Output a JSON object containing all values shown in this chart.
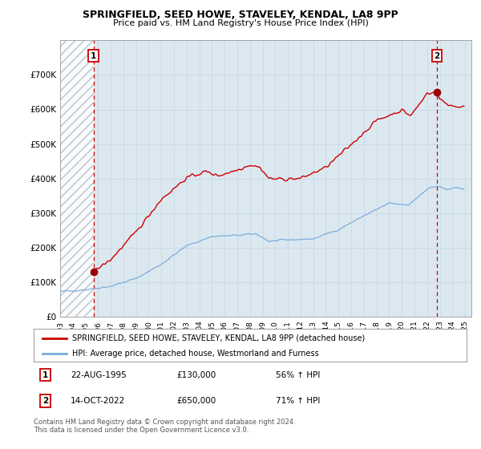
{
  "title": "SPRINGFIELD, SEED HOWE, STAVELEY, KENDAL, LA8 9PP",
  "subtitle": "Price paid vs. HM Land Registry's House Price Index (HPI)",
  "sale1_date": "22-AUG-1995",
  "sale1_price": 130000,
  "sale1_hpi": "56% ↑ HPI",
  "sale2_date": "14-OCT-2022",
  "sale2_price": 650000,
  "sale2_hpi": "71% ↑ HPI",
  "legend1": "SPRINGFIELD, SEED HOWE, STAVELEY, KENDAL, LA8 9PP (detached house)",
  "legend2": "HPI: Average price, detached house, Westmorland and Furness",
  "footer": "Contains HM Land Registry data © Crown copyright and database right 2024.\nThis data is licensed under the Open Government Licence v3.0.",
  "price_line_color": "#cc0000",
  "hpi_line_color": "#7aaddb",
  "marker_color": "#990000",
  "dashed_line_color": "#cc0000",
  "grid_color": "#c8d8e8",
  "plot_bg_color": "#dce8f0",
  "background_color": "#ffffff",
  "ylim": [
    0,
    800000
  ],
  "yticks": [
    0,
    100000,
    200000,
    300000,
    400000,
    500000,
    600000,
    700000
  ],
  "ytick_labels": [
    "£0",
    "£100K",
    "£200K",
    "£300K",
    "£400K",
    "£500K",
    "£600K",
    "£700K"
  ],
  "xlim_start": 1993.0,
  "xlim_end": 2025.5,
  "xticks": [
    1993,
    1994,
    1995,
    1996,
    1997,
    1998,
    1999,
    2000,
    2001,
    2002,
    2003,
    2004,
    2005,
    2006,
    2007,
    2008,
    2009,
    2010,
    2011,
    2012,
    2013,
    2014,
    2015,
    2016,
    2017,
    2018,
    2019,
    2020,
    2021,
    2022,
    2023,
    2024,
    2025
  ],
  "sale1_x": 1995.64,
  "sale1_y": 130000,
  "sale2_x": 2022.78,
  "sale2_y": 650000
}
